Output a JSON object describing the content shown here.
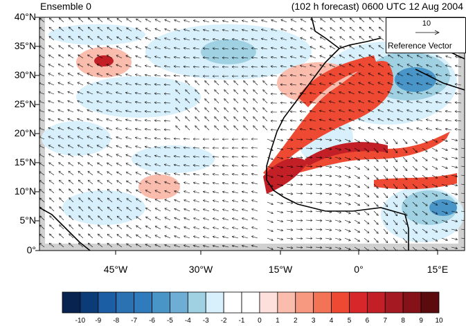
{
  "header": {
    "ensemble_label": "Ensemble 0",
    "forecast_label": "(102 h forecast) 0600 UTC 12 Aug 2004"
  },
  "axes": {
    "y_ticks": [
      "40°N",
      "35°N",
      "30°N",
      "25°N",
      "20°N",
      "15°N",
      "10°N",
      "5°N",
      "0°"
    ],
    "x_ticks": [
      "45°W",
      "30°W",
      "15°W",
      "0°",
      "15°E"
    ]
  },
  "reference_vector": {
    "value": "10",
    "label": "Reference Vector"
  },
  "colorbar": {
    "labels": [
      "-10",
      "-9",
      "-8",
      "-7",
      "-6",
      "-5",
      "-4",
      "-3",
      "-2",
      "-1",
      "0",
      "1",
      "2",
      "3",
      "4",
      "5",
      "6",
      "7",
      "8",
      "9",
      "10"
    ],
    "colors": [
      "#08234f",
      "#0c3c78",
      "#1c5ea3",
      "#2b72b2",
      "#2f7bbb",
      "#4a95c8",
      "#6eaed5",
      "#a0d1e2",
      "#d8f0fb",
      "#ffffff",
      "#ffffff",
      "#fde0dc",
      "#f9bcad",
      "#f79880",
      "#f37356",
      "#ee4a33",
      "#d8272a",
      "#c21f27",
      "#a51a22",
      "#851218",
      "#5b0a0e"
    ]
  }
}
